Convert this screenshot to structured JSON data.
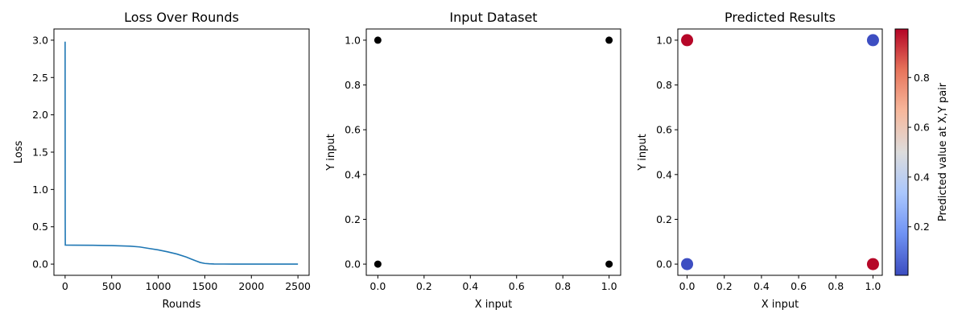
{
  "chart_data": [
    {
      "type": "line",
      "title": "Loss Over Rounds",
      "xlabel": "Rounds",
      "ylabel": "Loss",
      "xlim": [
        -120,
        2620
      ],
      "ylim": [
        -0.15,
        3.15
      ],
      "xticks": [
        0,
        500,
        1000,
        1500,
        2000,
        2500
      ],
      "yticks": [
        0.0,
        0.5,
        1.0,
        1.5,
        2.0,
        2.5,
        3.0
      ],
      "xtick_labels": [
        "0",
        "500",
        "1000",
        "1500",
        "2000",
        "2500"
      ],
      "ytick_labels": [
        "0.0",
        "0.5",
        "1.0",
        "1.5",
        "2.0",
        "2.5",
        "3.0"
      ],
      "series": [
        {
          "color": "#1f77b4",
          "x": [
            0,
            1,
            2,
            100,
            300,
            500,
            700,
            800,
            900,
            1000,
            1100,
            1200,
            1300,
            1350,
            1400,
            1450,
            1500,
            1550,
            1600,
            1700,
            1800,
            2000,
            2200,
            2500
          ],
          "y": [
            2.98,
            0.6,
            0.255,
            0.254,
            0.252,
            0.248,
            0.24,
            0.23,
            0.21,
            0.19,
            0.165,
            0.135,
            0.095,
            0.07,
            0.045,
            0.022,
            0.009,
            0.004,
            0.002,
            0.001,
            0.0,
            0.0,
            0.0,
            0.0
          ]
        }
      ]
    },
    {
      "type": "scatter",
      "title": "Input Dataset",
      "xlabel": "X input",
      "ylabel": "Y input",
      "xlim": [
        -0.05,
        1.05
      ],
      "ylim": [
        -0.05,
        1.05
      ],
      "xticks": [
        0.0,
        0.2,
        0.4,
        0.6,
        0.8,
        1.0
      ],
      "yticks": [
        0.0,
        0.2,
        0.4,
        0.6,
        0.8,
        1.0
      ],
      "xtick_labels": [
        "0.0",
        "0.2",
        "0.4",
        "0.6",
        "0.8",
        "1.0"
      ],
      "ytick_labels": [
        "0.0",
        "0.2",
        "0.4",
        "0.6",
        "0.8",
        "1.0"
      ],
      "points": [
        {
          "x": 0,
          "y": 1,
          "color": "#000000"
        },
        {
          "x": 1,
          "y": 1,
          "color": "#000000"
        },
        {
          "x": 0,
          "y": 0,
          "color": "#000000"
        },
        {
          "x": 1,
          "y": 0,
          "color": "#000000"
        }
      ]
    },
    {
      "type": "scatter",
      "title": "Predicted Results",
      "xlabel": "X input",
      "ylabel": "Y input",
      "xlim": [
        -0.05,
        1.05
      ],
      "ylim": [
        -0.05,
        1.05
      ],
      "xticks": [
        0.0,
        0.2,
        0.4,
        0.6,
        0.8,
        1.0
      ],
      "yticks": [
        0.0,
        0.2,
        0.4,
        0.6,
        0.8,
        1.0
      ],
      "xtick_labels": [
        "0.0",
        "0.2",
        "0.4",
        "0.6",
        "0.8",
        "1.0"
      ],
      "ytick_labels": [
        "0.0",
        "0.2",
        "0.4",
        "0.6",
        "0.8",
        "1.0"
      ],
      "points": [
        {
          "x": 0,
          "y": 1,
          "value": 0.99
        },
        {
          "x": 1,
          "y": 1,
          "value": 0.01
        },
        {
          "x": 0,
          "y": 0,
          "value": 0.01
        },
        {
          "x": 1,
          "y": 0,
          "value": 0.99
        }
      ],
      "colorbar": {
        "label": "Predicted value at X,Y pair",
        "colormap": "coolwarm",
        "min": 0.005,
        "max": 0.995,
        "ticks": [
          0.2,
          0.4,
          0.6,
          0.8
        ],
        "tick_labels": [
          "0.2",
          "0.4",
          "0.6",
          "0.8"
        ],
        "colors": [
          "#3b4cc0",
          "#6f92f3",
          "#aac7fd",
          "#dddcdc",
          "#f7b89c",
          "#e7745b",
          "#b40426"
        ]
      }
    }
  ]
}
